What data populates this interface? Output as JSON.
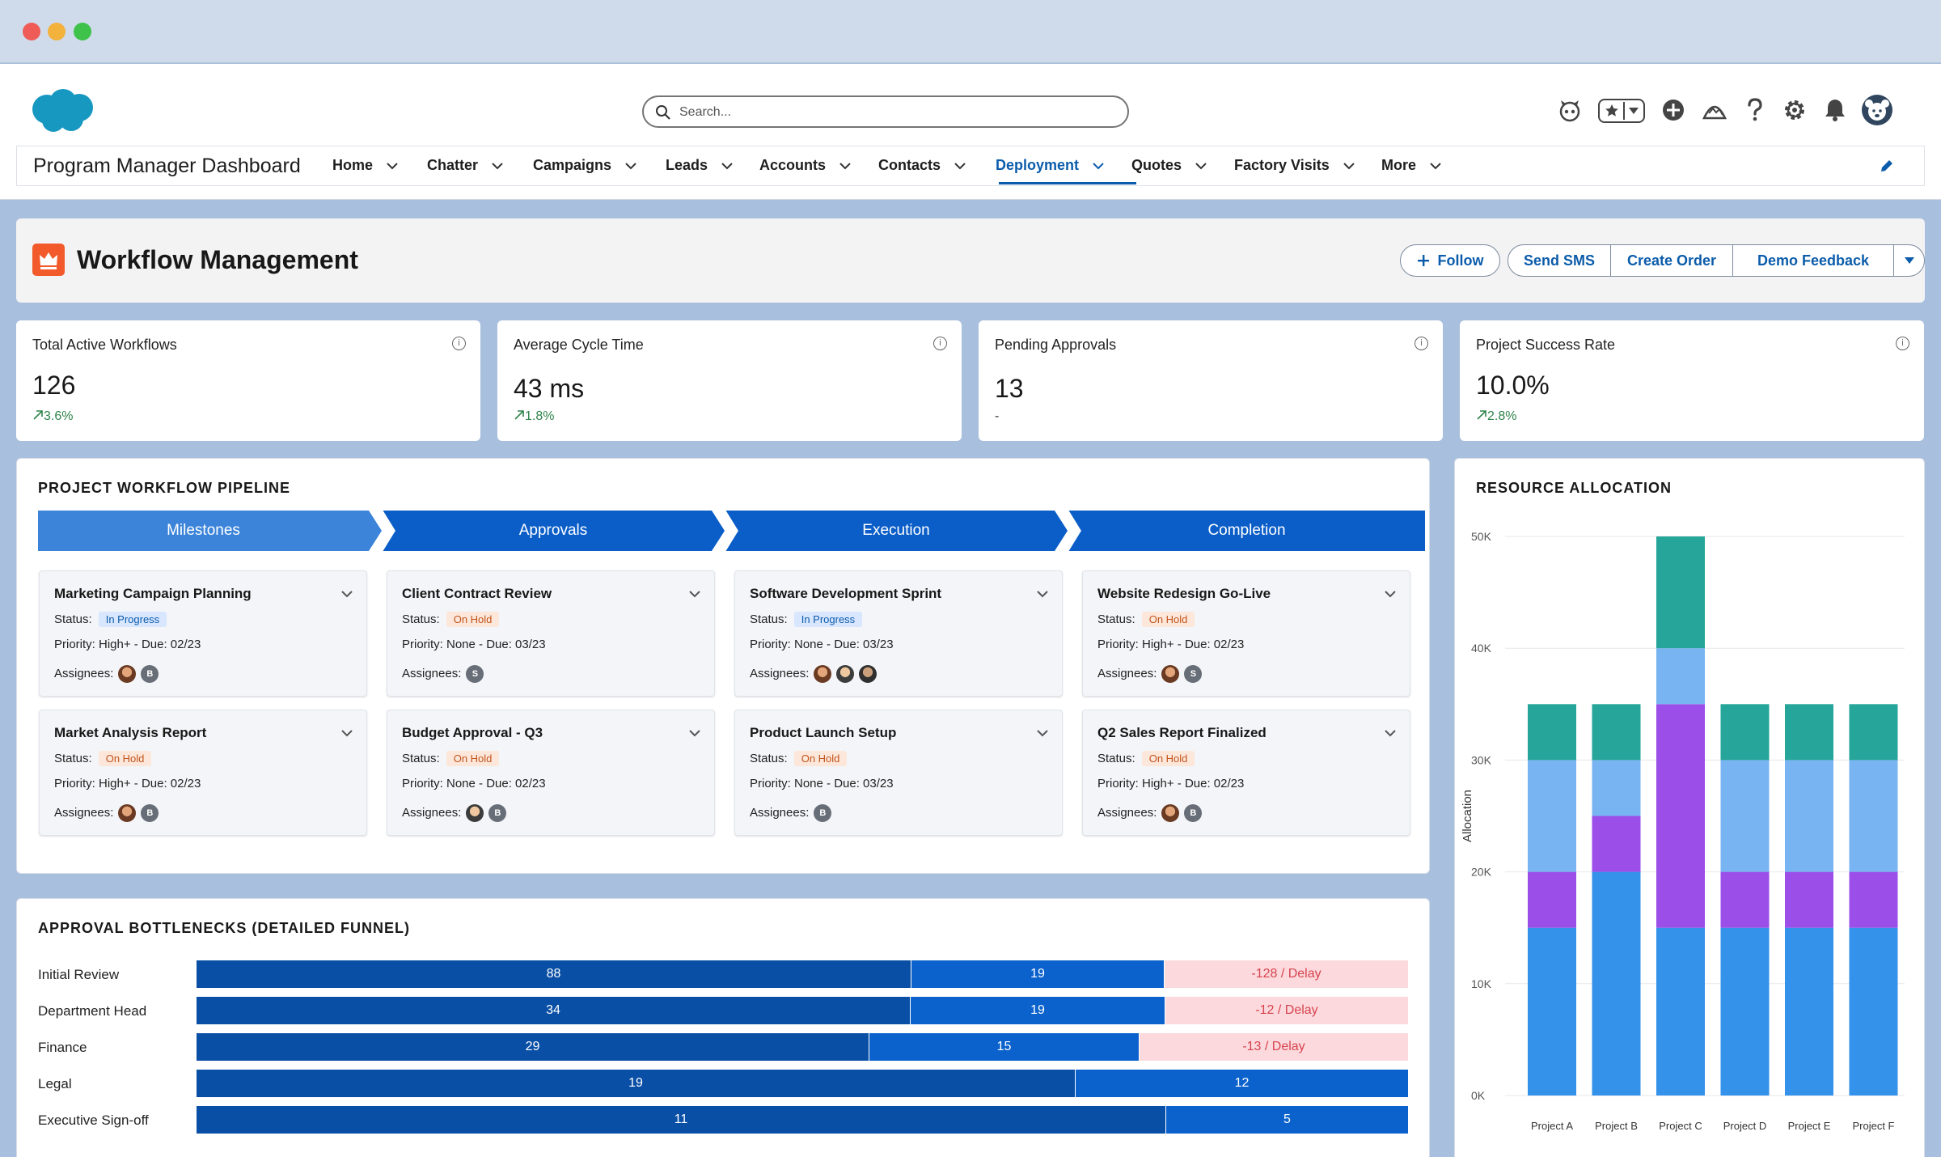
{
  "app": {
    "name": "Program Manager Dashboard",
    "search_placeholder": "Search..."
  },
  "header_icons": [
    "einstein-icon",
    "favorites-star-icon",
    "add-icon",
    "trailhead-icon",
    "help-icon",
    "settings-gear-icon",
    "notifications-bell-icon",
    "user-avatar-icon"
  ],
  "nav": [
    {
      "label": "Home",
      "active": false
    },
    {
      "label": "Chatter",
      "active": false
    },
    {
      "label": "Campaigns",
      "active": false
    },
    {
      "label": "Leads",
      "active": false
    },
    {
      "label": "Accounts",
      "active": false
    },
    {
      "label": "Contacts",
      "active": false
    },
    {
      "label": "Deployment",
      "active": true
    },
    {
      "label": "Quotes",
      "active": false
    },
    {
      "label": "Factory Visits",
      "active": false
    },
    {
      "label": "More",
      "active": false
    }
  ],
  "page": {
    "title": "Workflow Management",
    "buttons": {
      "follow": "Follow",
      "sms": "Send SMS",
      "order": "Create Order",
      "feedback": "Demo Feedback"
    }
  },
  "kpis": [
    {
      "label": "Total Active Workflows",
      "value": "126",
      "trend": "3.6%"
    },
    {
      "label": "Average Cycle Time",
      "value": "43 ms",
      "trend": "1.8%"
    },
    {
      "label": "Pending Approvals",
      "value": "13",
      "trend": "-"
    },
    {
      "label": "Project Success Rate",
      "value": "10.0%",
      "trend": "2.8%"
    }
  ],
  "pipeline": {
    "title": "PROJECT WORKFLOW PIPELINE",
    "stages": [
      "Milestones",
      "Approvals",
      "Execution",
      "Completion"
    ],
    "labels": {
      "status": "Status:",
      "assignees": "Assignees:"
    },
    "cards": [
      [
        {
          "title": "Marketing Campaign Planning",
          "status": "In Progress",
          "priority": "Priority: High+ - Due: 02/23",
          "assignees": [
            "p1",
            "B"
          ]
        },
        {
          "title": "Market Analysis Report",
          "status": "On Hold",
          "priority": "Priority: High+ - Due: 02/23",
          "assignees": [
            "p1",
            "B"
          ]
        }
      ],
      [
        {
          "title": "Client Contract Review",
          "status": "On Hold",
          "priority": "Priority: None - Due: 03/23",
          "assignees": [
            "S"
          ]
        },
        {
          "title": "Budget Approval - Q3",
          "status": "On Hold",
          "priority": "Priority: None - Due: 02/23",
          "assignees": [
            "p2",
            "B"
          ]
        }
      ],
      [
        {
          "title": "Software Development Sprint",
          "status": "In Progress",
          "priority": "Priority: None - Due: 03/23",
          "assignees": [
            "p1",
            "p2",
            "p3"
          ]
        },
        {
          "title": "Product Launch Setup",
          "status": "On Hold",
          "priority": "Priority: None - Due: 03/23",
          "assignees": [
            "B"
          ]
        }
      ],
      [
        {
          "title": "Website Redesign Go-Live",
          "status": "On Hold",
          "priority": "Priority: High+ - Due: 02/23",
          "assignees": [
            "p1",
            "S"
          ]
        },
        {
          "title": "Q2 Sales Report Finalized",
          "status": "On Hold",
          "priority": "Priority: High+ - Due: 02/23",
          "assignees": [
            "p1",
            "B"
          ]
        }
      ]
    ]
  },
  "funnel": {
    "title": "APPROVAL BOTTLENECKS (DETAILED FUNNEL)",
    "rows": [
      {
        "label": "Initial Review",
        "a": 88,
        "b": 19,
        "delay": "-128 / Delay"
      },
      {
        "label": "Department Head",
        "a": 34,
        "b": 19,
        "delay": "-12 / Delay"
      },
      {
        "label": "Finance",
        "a": 29,
        "b": 15,
        "delay": "-13 / Delay"
      },
      {
        "label": "Legal",
        "a": 19,
        "b": 12,
        "delay": ""
      },
      {
        "label": "Executive Sign-off",
        "a": 11,
        "b": 5,
        "delay": ""
      }
    ]
  },
  "chart_data": {
    "type": "bar",
    "stacked": true,
    "title": "RESOURCE ALLOCATION",
    "xlabel": "",
    "ylabel": "Allocation",
    "ylim": [
      0,
      50000
    ],
    "yticks": [
      "0K",
      "10K",
      "20K",
      "30K",
      "40K",
      "50K"
    ],
    "categories": [
      "Project A",
      "Project B",
      "Project C",
      "Project D",
      "Project E",
      "Project F"
    ],
    "series": [
      {
        "color": "#3492eb",
        "values": [
          15000,
          20000,
          15000,
          15000,
          15000,
          15000
        ]
      },
      {
        "color": "#9b4ee8",
        "values": [
          5000,
          5000,
          20000,
          5000,
          5000,
          5000
        ]
      },
      {
        "color": "#78b4f2",
        "values": [
          10000,
          5000,
          5000,
          10000,
          10000,
          10000
        ]
      },
      {
        "color": "#26a69a",
        "values": [
          5000,
          5000,
          10000,
          5000,
          5000,
          5000
        ]
      }
    ],
    "grid": true,
    "legend": "none"
  }
}
